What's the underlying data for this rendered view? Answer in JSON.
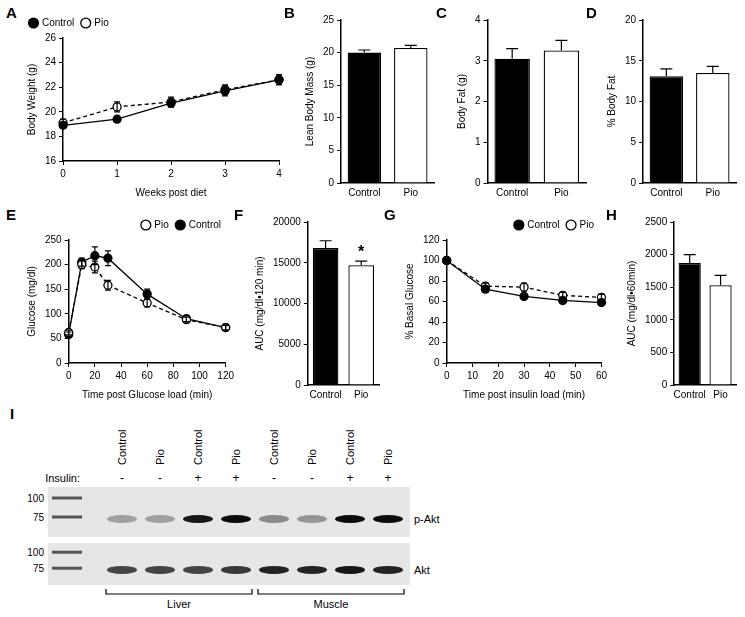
{
  "chart_data": [
    {
      "panel": "A",
      "type": "line",
      "x_label": "Weeks post diet",
      "y_label": "Body Weight (g)",
      "x": [
        0,
        1,
        2,
        3,
        4
      ],
      "xlim": [
        0,
        4
      ],
      "xticks": [
        0,
        1,
        2,
        3,
        4
      ],
      "ylim": [
        16,
        26
      ],
      "yticks": [
        16,
        18,
        20,
        22,
        24,
        26
      ],
      "grid": false,
      "legend": "top-left",
      "series": [
        {
          "name": "Control",
          "color": "#000000",
          "marker": "filled_circle",
          "line_style": "solid",
          "values": [
            18.9,
            19.4,
            20.7,
            21.7,
            22.6
          ],
          "errors": [
            0.2,
            0.2,
            0.3,
            0.4,
            0.4
          ]
        },
        {
          "name": "Pio",
          "color": "#000000",
          "marker": "open_circle",
          "line_style": "dashed",
          "values": [
            19.1,
            20.4,
            20.8,
            21.8,
            22.6
          ],
          "errors": [
            0.3,
            0.4,
            0.4,
            0.4,
            0.4
          ]
        }
      ]
    },
    {
      "panel": "B",
      "type": "bar",
      "y_label": "Lean Body Mass (g)",
      "categories": [
        "Control",
        "Pio"
      ],
      "values": [
        20.0,
        20.7
      ],
      "errors": [
        0.4,
        0.4
      ],
      "colors": [
        "#000000",
        "#ffffff"
      ],
      "ylim": [
        0,
        25
      ],
      "yticks": [
        0,
        5,
        10,
        15,
        20,
        25
      ],
      "grid": false
    },
    {
      "panel": "C",
      "type": "bar",
      "y_label": "Body Fat (g)",
      "categories": [
        "Control",
        "Pio"
      ],
      "values": [
        3.05,
        3.25
      ],
      "errors": [
        0.25,
        0.25
      ],
      "colors": [
        "#000000",
        "#ffffff"
      ],
      "ylim": [
        0,
        4
      ],
      "yticks": [
        0,
        1,
        2,
        3,
        4
      ],
      "grid": false
    },
    {
      "panel": "D",
      "type": "bar",
      "y_label": "% Body Fat",
      "categories": [
        "Control",
        "Pio"
      ],
      "values": [
        13.1,
        13.5
      ],
      "errors": [
        0.9,
        0.8
      ],
      "colors": [
        "#000000",
        "#ffffff"
      ],
      "ylim": [
        0,
        20
      ],
      "yticks": [
        0,
        5,
        10,
        15,
        20
      ],
      "grid": false
    },
    {
      "panel": "E",
      "type": "line",
      "x_label": "Time post Glucose load (min)",
      "y_label": "Glucose (mg/dl)",
      "x": [
        0,
        10,
        20,
        30,
        60,
        90,
        120
      ],
      "xlim": [
        0,
        120
      ],
      "xticks": [
        0,
        20,
        40,
        60,
        80,
        100,
        120
      ],
      "ylim": [
        0,
        250
      ],
      "yticks": [
        0,
        50,
        100,
        150,
        200,
        250
      ],
      "grid": false,
      "legend": "top-right",
      "series": [
        {
          "name": "Pio",
          "color": "#000000",
          "marker": "open_circle",
          "line_style": "dashed",
          "values": [
            62,
            200,
            195,
            158,
            122,
            88,
            72
          ],
          "errors": [
            5,
            8,
            12,
            10,
            8,
            5,
            5
          ]
        },
        {
          "name": "Control",
          "color": "#000000",
          "marker": "filled_circle",
          "line_style": "solid",
          "values": [
            58,
            205,
            218,
            213,
            140,
            90,
            72
          ],
          "errors": [
            5,
            8,
            18,
            15,
            10,
            6,
            5
          ]
        }
      ]
    },
    {
      "panel": "F",
      "type": "bar",
      "y_label": "AUC (mg/dl•120 min)",
      "categories": [
        "Control",
        "Pio"
      ],
      "values": [
        16800,
        14700
      ],
      "errors": [
        900,
        500
      ],
      "colors": [
        "#000000",
        "#ffffff"
      ],
      "ylim": [
        0,
        20000
      ],
      "yticks": [
        0,
        5000,
        10000,
        15000,
        20000
      ],
      "grid": false,
      "annotations": [
        {
          "category": "Pio",
          "text": "*"
        }
      ]
    },
    {
      "panel": "G",
      "type": "line",
      "x_label": "Time post insulin load (min)",
      "y_label": "% Basal Glucose",
      "x": [
        0,
        15,
        30,
        45,
        60
      ],
      "xlim": [
        0,
        60
      ],
      "xticks": [
        0,
        10,
        20,
        30,
        40,
        50,
        60
      ],
      "ylim": [
        0,
        120
      ],
      "yticks": [
        0,
        20,
        40,
        60,
        80,
        100,
        120
      ],
      "grid": false,
      "legend": "top-right",
      "series": [
        {
          "name": "Control",
          "color": "#000000",
          "marker": "filled_circle",
          "line_style": "solid",
          "values": [
            100,
            72,
            65,
            61,
            59
          ],
          "errors": [
            0,
            3,
            2,
            2,
            2
          ]
        },
        {
          "name": "Pio",
          "color": "#000000",
          "marker": "open_circle",
          "line_style": "dashed",
          "values": [
            100,
            75,
            74,
            66,
            64
          ],
          "errors": [
            0,
            3,
            4,
            3,
            3
          ]
        }
      ]
    },
    {
      "panel": "H",
      "type": "bar",
      "y_label": "AUC (mg/dl•60min)",
      "categories": [
        "Control",
        "Pio"
      ],
      "values": [
        1870,
        1530
      ],
      "errors": [
        130,
        150
      ],
      "colors": [
        "#000000",
        "#ffffff"
      ],
      "ylim": [
        0,
        2500
      ],
      "yticks": [
        0,
        500,
        1000,
        1500,
        2000,
        2500
      ],
      "grid": false
    }
  ],
  "blot": {
    "panel": "I",
    "insulin_label": "Insulin:",
    "lanes": [
      {
        "label": "Control",
        "insulin": "-"
      },
      {
        "label": "Pio",
        "insulin": "-"
      },
      {
        "label": "Control",
        "insulin": "+"
      },
      {
        "label": "Pio",
        "insulin": "+"
      },
      {
        "label": "Control",
        "insulin": "-"
      },
      {
        "label": "Pio",
        "insulin": "-"
      },
      {
        "label": "Control",
        "insulin": "+"
      },
      {
        "label": "Pio",
        "insulin": "+"
      }
    ],
    "markers": [
      "100",
      "75"
    ],
    "rows": [
      {
        "label": "p-Akt",
        "intensity": [
          0.3,
          0.3,
          0.9,
          0.95,
          0.4,
          0.35,
          0.95,
          0.95
        ]
      },
      {
        "label": "Akt",
        "intensity": [
          0.7,
          0.7,
          0.7,
          0.75,
          0.85,
          0.85,
          0.9,
          0.85
        ]
      }
    ],
    "groups": [
      {
        "label": "Liver",
        "lanes": 4
      },
      {
        "label": "Muscle",
        "lanes": 4
      }
    ]
  }
}
